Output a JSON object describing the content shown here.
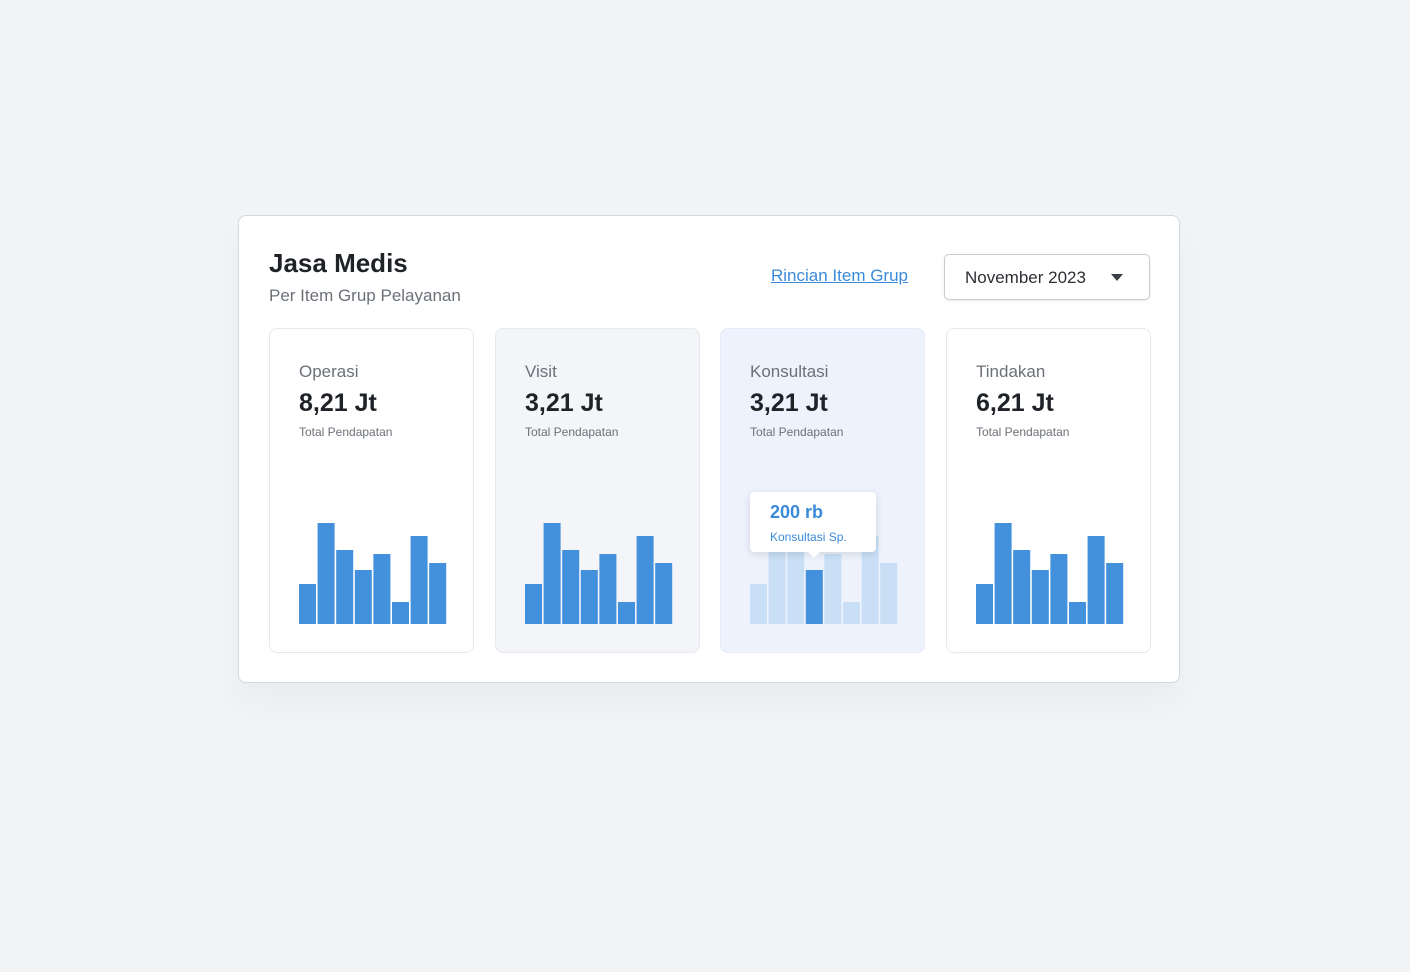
{
  "header": {
    "title": "Jasa Medis",
    "subtitle": "Per Item Grup Pelayanan",
    "link": "Rincian Item Grup",
    "dropdown": "November 2023"
  },
  "cards": [
    {
      "label": "Operasi",
      "value": "8,21 Jt",
      "caption": "Total Pendapatan",
      "bars": [
        40,
        101,
        74,
        54,
        70,
        22,
        88,
        61
      ]
    },
    {
      "label": "Visit",
      "value": "3,21 Jt",
      "caption": "Total Pendapatan",
      "bars": [
        40,
        101,
        74,
        54,
        70,
        22,
        88,
        61
      ]
    },
    {
      "label": "Konsultasi",
      "value": "3,21 Jt",
      "caption": "Total Pendapatan",
      "bars": [
        40,
        101,
        74,
        54,
        70,
        22,
        88,
        61
      ],
      "highlight": 3,
      "tooltip": {
        "value": "200 rb",
        "label": "Konsultasi Sp."
      }
    },
    {
      "label": "Tindakan",
      "value": "6,21 Jt",
      "caption": "Total Pendapatan",
      "bars": [
        40,
        101,
        74,
        54,
        70,
        22,
        88,
        61
      ]
    }
  ]
}
